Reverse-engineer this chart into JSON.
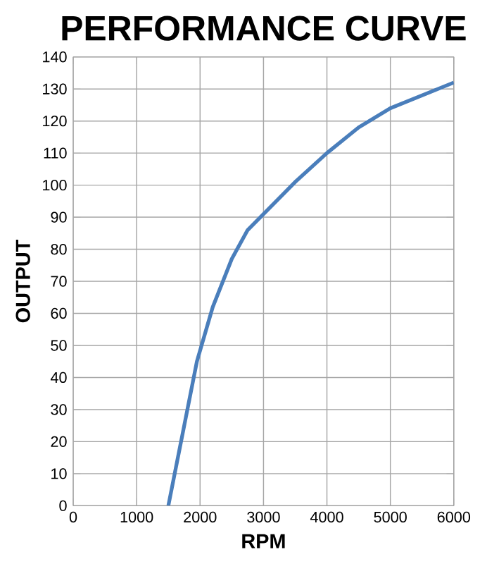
{
  "chart_data": {
    "type": "line",
    "title": "PERFORMANCE CURVE",
    "xlabel": "RPM",
    "ylabel": "OUTPUT",
    "x": [
      1500,
      1750,
      1950,
      2200,
      2500,
      2750,
      3000,
      3500,
      4000,
      4500,
      5000,
      5500,
      6000
    ],
    "values": [
      0,
      25,
      45,
      62,
      77,
      86,
      91,
      101,
      110,
      118,
      124,
      128,
      132
    ],
    "color": "#4a7ebb",
    "xlim": [
      0,
      6000
    ],
    "ylim": [
      0,
      140
    ],
    "xticks": [
      0,
      1000,
      2000,
      3000,
      4000,
      5000,
      6000
    ],
    "yticks": [
      0,
      10,
      20,
      30,
      40,
      50,
      60,
      70,
      80,
      90,
      100,
      110,
      120,
      130,
      140
    ],
    "grid": true,
    "marker": "none",
    "line_style": "solid"
  }
}
